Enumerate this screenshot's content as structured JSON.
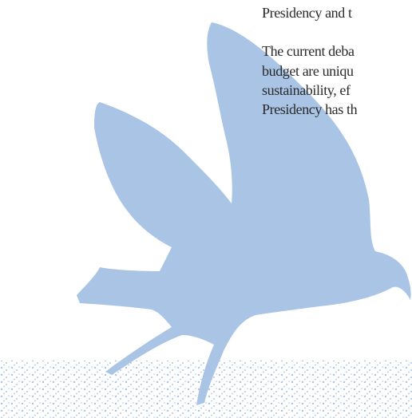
{
  "paragraphs": [
    {
      "lines": [
        "Presidency and t"
      ]
    },
    {
      "lines": [
        "The current deba",
        "budget are uniqu",
        "sustainability, ef",
        "Presidency has th"
      ]
    }
  ]
}
